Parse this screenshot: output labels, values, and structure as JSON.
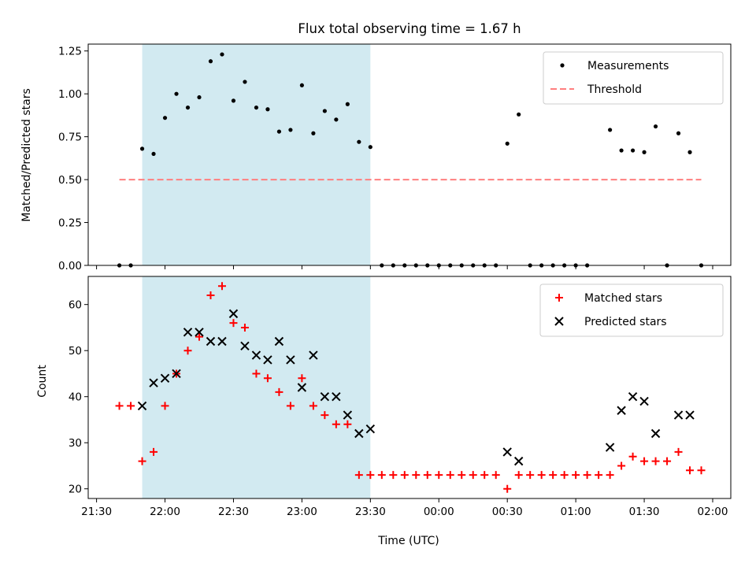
{
  "chart_data": [
    {
      "type": "scatter",
      "title": "Flux total observing time = 1.67 h",
      "ylabel": "Matched/Predicted stars",
      "xlabel": "",
      "ylim": [
        0,
        1.29
      ],
      "yticks": [
        "0.00",
        "0.25",
        "0.50",
        "0.75",
        "1.00",
        "1.25"
      ],
      "ytick_values": [
        0,
        0.25,
        0.5,
        0.75,
        1.0,
        1.25
      ],
      "grid": false,
      "legend_position": "top-right",
      "shaded_region": {
        "x_start": "21:50",
        "x_end": "23:30",
        "color": "#add8e6"
      },
      "series": [
        {
          "name": "Measurements",
          "marker": "dot",
          "color": "#000000",
          "x": [
            "21:40",
            "21:45",
            "21:50",
            "21:55",
            "22:00",
            "22:05",
            "22:10",
            "22:15",
            "22:20",
            "22:25",
            "22:30",
            "22:35",
            "22:40",
            "22:45",
            "22:50",
            "22:55",
            "23:00",
            "23:05",
            "23:10",
            "23:15",
            "23:20",
            "23:25",
            "23:30",
            "23:35",
            "23:40",
            "23:45",
            "23:50",
            "23:55",
            "00:00",
            "00:05",
            "00:10",
            "00:15",
            "00:20",
            "00:25",
            "00:30",
            "00:35",
            "00:40",
            "00:45",
            "00:50",
            "00:55",
            "01:00",
            "01:05",
            "01:15",
            "01:20",
            "01:25",
            "01:30",
            "01:35",
            "01:40",
            "01:45",
            "01:50",
            "01:55"
          ],
          "y": [
            0,
            0,
            0.68,
            0.65,
            0.86,
            1.0,
            0.92,
            0.98,
            1.19,
            1.23,
            0.96,
            1.07,
            0.92,
            0.91,
            0.78,
            0.79,
            1.05,
            0.77,
            0.9,
            0.85,
            0.94,
            0.72,
            0.69,
            0,
            0,
            0,
            0,
            0,
            0,
            0,
            0,
            0,
            0,
            0,
            0.71,
            0.88,
            0,
            0,
            0,
            0,
            0,
            0,
            0.79,
            0.67,
            0.67,
            0.66,
            0.81,
            0,
            0.77,
            0.66,
            0
          ]
        },
        {
          "name": "Threshold",
          "marker": "dashed-line",
          "color": "#ff7f7f",
          "x": [
            "21:40",
            "01:55"
          ],
          "y": [
            0.5,
            0.5
          ]
        }
      ]
    },
    {
      "type": "scatter",
      "title": "",
      "ylabel": "Count",
      "xlabel": "Time (UTC)",
      "ylim": [
        17.9,
        66.1
      ],
      "yticks": [
        "20",
        "30",
        "40",
        "50",
        "60"
      ],
      "ytick_values": [
        20,
        30,
        40,
        50,
        60
      ],
      "grid": false,
      "legend_position": "top-right",
      "shaded_region": {
        "x_start": "21:50",
        "x_end": "23:30",
        "color": "#add8e6"
      },
      "x_ticks": [
        "21:30",
        "22:00",
        "22:30",
        "23:00",
        "23:30",
        "00:00",
        "00:30",
        "01:00",
        "01:30",
        "02:00"
      ],
      "series": [
        {
          "name": "Matched stars",
          "marker": "plus",
          "color": "#ff0000",
          "x": [
            "21:40",
            "21:45",
            "21:50",
            "21:55",
            "22:00",
            "22:05",
            "22:10",
            "22:15",
            "22:20",
            "22:25",
            "22:30",
            "22:35",
            "22:40",
            "22:45",
            "22:50",
            "22:55",
            "23:00",
            "23:05",
            "23:10",
            "23:15",
            "23:20",
            "23:25",
            "23:30",
            "23:35",
            "23:40",
            "23:45",
            "23:50",
            "23:55",
            "00:00",
            "00:05",
            "00:10",
            "00:15",
            "00:20",
            "00:25",
            "00:30",
            "00:35",
            "00:40",
            "00:45",
            "00:50",
            "00:55",
            "01:00",
            "01:05",
            "01:10",
            "01:15",
            "01:20",
            "01:25",
            "01:30",
            "01:35",
            "01:40",
            "01:45",
            "01:50",
            "01:55"
          ],
          "y": [
            38,
            38,
            26,
            28,
            38,
            45,
            50,
            53,
            62,
            64,
            56,
            55,
            45,
            44,
            41,
            38,
            44,
            38,
            36,
            34,
            34,
            23,
            23,
            23,
            23,
            23,
            23,
            23,
            23,
            23,
            23,
            23,
            23,
            23,
            20,
            23,
            23,
            23,
            23,
            23,
            23,
            23,
            23,
            23,
            25,
            27,
            26,
            26,
            26,
            28,
            24,
            24
          ]
        },
        {
          "name": "Predicted stars",
          "marker": "x",
          "color": "#000000",
          "x": [
            "21:50",
            "21:55",
            "22:00",
            "22:05",
            "22:10",
            "22:15",
            "22:20",
            "22:25",
            "22:30",
            "22:35",
            "22:40",
            "22:45",
            "22:50",
            "22:55",
            "23:00",
            "23:05",
            "23:10",
            "23:15",
            "23:20",
            "23:25",
            "23:30",
            "00:30",
            "00:35",
            "01:15",
            "01:20",
            "01:25",
            "01:30",
            "01:35",
            "01:45",
            "01:50"
          ],
          "y": [
            38,
            43,
            44,
            45,
            54,
            54,
            52,
            52,
            58,
            51,
            49,
            48,
            52,
            48,
            42,
            49,
            40,
            40,
            36,
            32,
            33,
            28,
            26,
            29,
            37,
            40,
            39,
            32,
            36,
            36
          ]
        }
      ]
    }
  ]
}
